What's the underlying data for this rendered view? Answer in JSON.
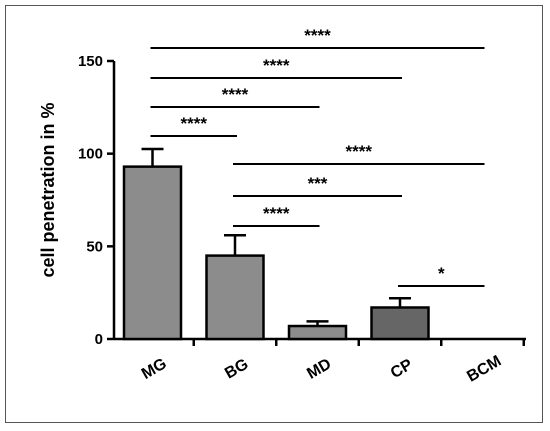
{
  "chart_data": {
    "type": "bar",
    "title": "",
    "xlabel": "",
    "ylabel": "cell penetration in %",
    "ylim": [
      0,
      150
    ],
    "yticks": [
      0,
      50,
      100,
      150
    ],
    "grid": false,
    "categories": [
      "MG",
      "BG",
      "MD",
      "CP",
      "BCM"
    ],
    "values": [
      93,
      45,
      7,
      17,
      0
    ],
    "errors": [
      9.5,
      11,
      2.5,
      5,
      0
    ],
    "bar_colors": [
      "#8c8c8c",
      "#8c8c8c",
      "#8c8c8c",
      "#666666",
      "#8c8c8c"
    ],
    "significance": [
      {
        "from": "MG",
        "to": "BCM",
        "label": "****"
      },
      {
        "from": "MG",
        "to": "CP",
        "label": "****"
      },
      {
        "from": "MG",
        "to": "MD",
        "label": "****"
      },
      {
        "from": "MG",
        "to": "BG",
        "label": "****"
      },
      {
        "from": "BG",
        "to": "BCM",
        "label": "****"
      },
      {
        "from": "BG",
        "to": "CP",
        "label": "***"
      },
      {
        "from": "BG",
        "to": "MD",
        "label": "****"
      },
      {
        "from": "CP",
        "to": "BCM",
        "label": "*"
      }
    ]
  }
}
